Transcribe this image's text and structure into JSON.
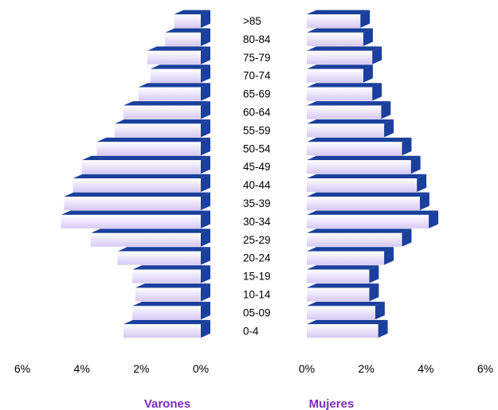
{
  "chart_data": {
    "type": "bar",
    "orientation": "horizontal-pyramid",
    "categories": [
      ">85",
      "80-84",
      "75-79",
      "70-74",
      "65-69",
      "60-64",
      "55-59",
      "50-54",
      "45-49",
      "40-44",
      "35-39",
      "30-34",
      "25-29",
      "20-24",
      "15-19",
      "10-14",
      "05-09",
      "0-4"
    ],
    "series": [
      {
        "name": "Varones",
        "values": [
          0.9,
          1.2,
          1.8,
          1.7,
          2.1,
          2.6,
          2.9,
          3.5,
          4.0,
          4.3,
          4.6,
          4.7,
          3.7,
          2.8,
          2.3,
          2.2,
          2.3,
          2.6
        ]
      },
      {
        "name": "Mujeres",
        "values": [
          1.8,
          1.9,
          2.2,
          1.9,
          2.2,
          2.5,
          2.6,
          3.2,
          3.5,
          3.7,
          3.8,
          4.1,
          3.2,
          2.6,
          2.1,
          2.1,
          2.3,
          2.4
        ]
      }
    ],
    "xlim": [
      0,
      6
    ],
    "x_ticks_left": [
      "6%",
      "4%",
      "2%",
      "0%"
    ],
    "x_ticks_right": [
      "0%",
      "2%",
      "4%",
      "6%"
    ],
    "colors": {
      "bar_face_light": "#ffffff",
      "bar_face_dark": "#d6c8f5",
      "bar_side": "#1a3f9c",
      "bar_top": "#1a3f9c",
      "legend_text": "#7b2cbf"
    },
    "grid": false,
    "legend": "bottom"
  }
}
